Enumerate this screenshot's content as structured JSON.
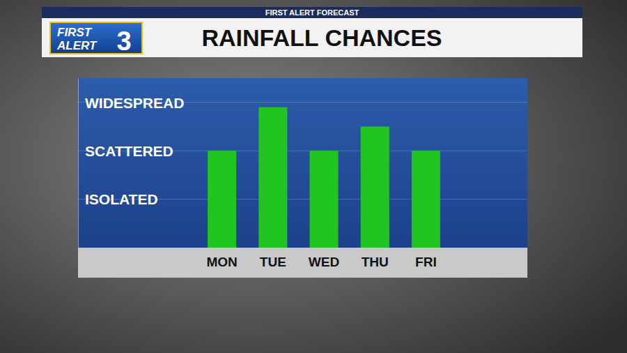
{
  "chart_data": {
    "type": "bar",
    "title": "RAINFALL CHANCES",
    "subtitle": "FIRST ALERT FORECAST",
    "annotations": [
      "FIRST",
      "ALERT",
      "3"
    ],
    "categories": [
      "MON",
      "TUE",
      "WED",
      "THU",
      "FRI"
    ],
    "values": [
      2,
      2.9,
      2,
      2.5,
      2
    ],
    "color": "#22c422",
    "ylim": [
      0,
      3.5
    ],
    "yticks": [
      {
        "value": 1,
        "label": "ISOLATED"
      },
      {
        "value": 2,
        "label": "SCATTERED"
      },
      {
        "value": 3,
        "label": "WIDESPREAD"
      }
    ],
    "grid": true
  }
}
